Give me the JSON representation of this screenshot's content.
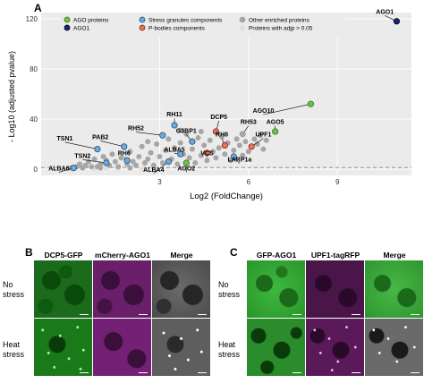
{
  "panels": {
    "a": "A",
    "b": "B",
    "c": "C"
  },
  "legend": {
    "items": [
      {
        "label": "AGO proteins",
        "color": "#6cc24a",
        "stroke": "#2e6e1f"
      },
      {
        "label": "AGO1",
        "color": "#1a237e",
        "stroke": "#000000"
      },
      {
        "label": "Stress granules components",
        "color": "#6fa8dc",
        "stroke": "#1f4e79"
      },
      {
        "label": "P-bodies components",
        "color": "#e8735a",
        "stroke": "#7a2b1a"
      },
      {
        "label": "Other enriched proteins",
        "color": "#a6a6a6",
        "stroke": "#a6a6a6"
      },
      {
        "label": "Proteins with adjp > 0.05",
        "color": "#e0e0e0",
        "stroke": "#e0e0e0"
      }
    ]
  },
  "chart_data": {
    "type": "scatter",
    "xlabel": "Log2 (FoldChange)",
    "ylabel": "- Log10 (adjusted pvalue)",
    "xlim": [
      -1,
      11.5
    ],
    "ylim": [
      -5,
      125
    ],
    "xticks": [
      3,
      6,
      9
    ],
    "yticks": [
      0,
      40,
      80,
      120
    ],
    "grid": true,
    "threshold_y": 1.3,
    "legend_position": "top",
    "labeled_points": [
      {
        "name": "AGO1",
        "x": 11.0,
        "y": 118,
        "group": "AGO1",
        "lx": 10.6,
        "ly": 124
      },
      {
        "name": "AGO10",
        "x": 8.1,
        "y": 52,
        "group": "AGO proteins",
        "lx": 6.5,
        "ly": 45
      },
      {
        "name": "AGO5",
        "x": 6.9,
        "y": 30,
        "group": "AGO proteins",
        "lx": 6.9,
        "ly": 36
      },
      {
        "name": "AGO2",
        "x": 3.9,
        "y": 5,
        "group": "AGO proteins",
        "lx": 3.9,
        "ly": -1
      },
      {
        "name": "ALBA4",
        "x": 3.3,
        "y": 6,
        "group": "Stress granules components",
        "lx": 2.8,
        "ly": -2
      },
      {
        "name": "ALBA5",
        "x": 3.7,
        "y": 12,
        "group": "Stress granules components",
        "lx": 3.5,
        "ly": 14
      },
      {
        "name": "ALBA6",
        "x": 0.1,
        "y": 1,
        "group": "Stress granules components",
        "lx": -0.4,
        "ly": -1
      },
      {
        "name": "TSN1",
        "x": 0.9,
        "y": 16,
        "group": "Stress granules components",
        "lx": -0.2,
        "ly": 23
      },
      {
        "name": "TSN2",
        "x": 1.2,
        "y": 5,
        "group": "Stress granules components",
        "lx": 0.4,
        "ly": 9
      },
      {
        "name": "PAB2",
        "x": 1.8,
        "y": 18,
        "group": "Stress granules components",
        "lx": 1.0,
        "ly": 24
      },
      {
        "name": "RH6",
        "x": 1.9,
        "y": 7,
        "group": "Stress granules components",
        "lx": 1.8,
        "ly": 11
      },
      {
        "name": "RH52",
        "x": 3.1,
        "y": 27,
        "group": "Stress granules components",
        "lx": 2.2,
        "ly": 31
      },
      {
        "name": "RH11",
        "x": 3.5,
        "y": 35,
        "group": "Stress granules components",
        "lx": 3.5,
        "ly": 42
      },
      {
        "name": "G3BP1",
        "x": 4.1,
        "y": 22,
        "group": "Stress granules components",
        "lx": 3.9,
        "ly": 29
      },
      {
        "name": "VCS",
        "x": 4.6,
        "y": 13,
        "group": "P-bodies components",
        "lx": 4.6,
        "ly": 11
      },
      {
        "name": "RH8",
        "x": 5.2,
        "y": 19,
        "group": "P-bodies components",
        "lx": 5.1,
        "ly": 26
      },
      {
        "name": "DCP5",
        "x": 4.9,
        "y": 30,
        "group": "P-bodies components",
        "lx": 5.0,
        "ly": 40
      },
      {
        "name": "RH53",
        "x": 5.8,
        "y": 28,
        "group": "Other enriched proteins",
        "lx": 6.0,
        "ly": 36
      },
      {
        "name": "UPF1",
        "x": 6.1,
        "y": 18,
        "group": "P-bodies components",
        "lx": 6.5,
        "ly": 26
      },
      {
        "name": "LARP1a",
        "x": 5.5,
        "y": 10,
        "group": "Stress granules components",
        "lx": 5.7,
        "ly": 6
      }
    ],
    "background_points": [
      {
        "x": 0.0,
        "y": 1
      },
      {
        "x": 0.2,
        "y": 2
      },
      {
        "x": 0.3,
        "y": 4
      },
      {
        "x": 0.5,
        "y": 3
      },
      {
        "x": 0.6,
        "y": 6
      },
      {
        "x": 0.7,
        "y": 2
      },
      {
        "x": 0.8,
        "y": 8
      },
      {
        "x": 1.0,
        "y": 4
      },
      {
        "x": 1.1,
        "y": 10
      },
      {
        "x": 1.3,
        "y": 3
      },
      {
        "x": 1.4,
        "y": 12
      },
      {
        "x": 1.5,
        "y": 6
      },
      {
        "x": 1.6,
        "y": 2
      },
      {
        "x": 1.7,
        "y": 9
      },
      {
        "x": 1.9,
        "y": 4
      },
      {
        "x": 2.0,
        "y": 14
      },
      {
        "x": 2.1,
        "y": 6
      },
      {
        "x": 2.2,
        "y": 3
      },
      {
        "x": 2.3,
        "y": 10
      },
      {
        "x": 2.4,
        "y": 18
      },
      {
        "x": 2.5,
        "y": 5
      },
      {
        "x": 2.6,
        "y": 8
      },
      {
        "x": 2.7,
        "y": 13
      },
      {
        "x": 2.8,
        "y": 3
      },
      {
        "x": 2.9,
        "y": 20
      },
      {
        "x": 3.0,
        "y": 10
      },
      {
        "x": 3.1,
        "y": 5
      },
      {
        "x": 3.2,
        "y": 15
      },
      {
        "x": 3.3,
        "y": 24
      },
      {
        "x": 3.4,
        "y": 8
      },
      {
        "x": 3.5,
        "y": 17
      },
      {
        "x": 3.6,
        "y": 4
      },
      {
        "x": 3.7,
        "y": 21
      },
      {
        "x": 3.8,
        "y": 12
      },
      {
        "x": 3.9,
        "y": 28
      },
      {
        "x": 4.0,
        "y": 9
      },
      {
        "x": 4.1,
        "y": 16
      },
      {
        "x": 4.2,
        "y": 5
      },
      {
        "x": 4.3,
        "y": 25
      },
      {
        "x": 4.4,
        "y": 11
      },
      {
        "x": 4.5,
        "y": 19
      },
      {
        "x": 4.6,
        "y": 7
      },
      {
        "x": 4.7,
        "y": 23
      },
      {
        "x": 4.8,
        "y": 14
      },
      {
        "x": 4.9,
        "y": 9
      },
      {
        "x": 5.0,
        "y": 17
      },
      {
        "x": 5.1,
        "y": 26
      },
      {
        "x": 5.2,
        "y": 12
      },
      {
        "x": 5.3,
        "y": 21
      },
      {
        "x": 5.4,
        "y": 7
      },
      {
        "x": 5.5,
        "y": 15
      },
      {
        "x": 5.6,
        "y": 24
      },
      {
        "x": 5.7,
        "y": 19
      },
      {
        "x": 5.8,
        "y": 11
      },
      {
        "x": 5.9,
        "y": 22
      },
      {
        "x": 6.0,
        "y": 14
      },
      {
        "x": 6.2,
        "y": 24
      },
      {
        "x": 6.3,
        "y": 20
      },
      {
        "x": 6.4,
        "y": 27
      },
      {
        "x": 6.5,
        "y": 16
      },
      {
        "x": 6.6,
        "y": 23
      },
      {
        "x": 4.4,
        "y": 30
      },
      {
        "x": 3.7,
        "y": 31
      },
      {
        "x": 2.6,
        "y": 22
      },
      {
        "x": 1.2,
        "y": 7
      },
      {
        "x": 0.4,
        "y": 1
      },
      {
        "x": 1.0,
        "y": 1
      },
      {
        "x": 2.0,
        "y": 1
      },
      {
        "x": 0.9,
        "y": 2
      }
    ],
    "nonsig_points": [
      {
        "x": -0.6,
        "y": 0.3
      },
      {
        "x": -0.3,
        "y": 0.6
      },
      {
        "x": 0.0,
        "y": 0.2
      },
      {
        "x": 0.4,
        "y": 0.8
      },
      {
        "x": 0.8,
        "y": 0.5
      },
      {
        "x": 1.2,
        "y": 0.7
      },
      {
        "x": 1.6,
        "y": 0.4
      },
      {
        "x": 2.0,
        "y": 0.9
      },
      {
        "x": 2.4,
        "y": 0.3
      },
      {
        "x": 2.8,
        "y": 0.6
      }
    ]
  },
  "panel_b": {
    "columns": [
      "DCP5-GFP",
      "mCherry-AGO1",
      "Merge"
    ],
    "rows": [
      {
        "label_line1": "No",
        "label_line2": "stress"
      },
      {
        "label_line1": "Heat",
        "label_line2": "stress"
      }
    ]
  },
  "panel_c": {
    "columns": [
      "GFP-AGO1",
      "UPF1-tagRFP",
      "Merge"
    ],
    "rows": [
      {
        "label_line1": "No",
        "label_line2": "stress"
      },
      {
        "label_line1": "Heat",
        "label_line2": "stress"
      }
    ]
  },
  "colors": {
    "green_channel": "#1f8a1f",
    "magenta_channel": "#8a2a8a",
    "threshold_line": "#808080"
  }
}
